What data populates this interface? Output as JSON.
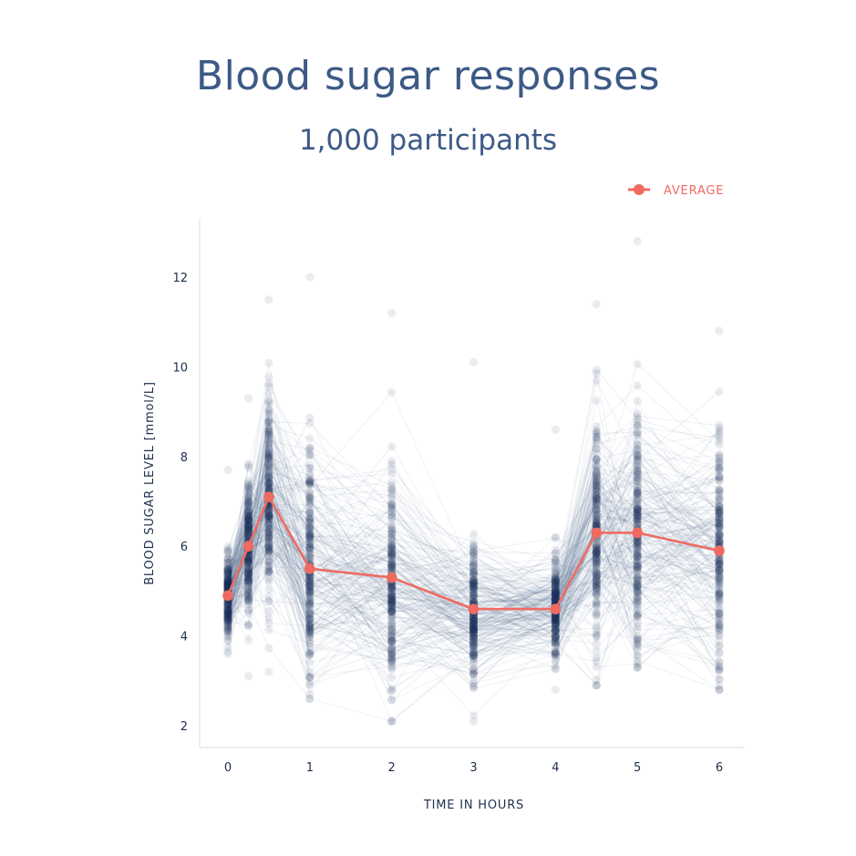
{
  "chart_data": {
    "type": "line",
    "title": "Blood sugar responses",
    "subtitle": "1,000 participants",
    "xlabel": "TIME IN HOURS",
    "ylabel": "BLOOD SUGAR LEVEL [mmol/L]",
    "x_ticks": [
      "0",
      "1",
      "2",
      "3",
      "4",
      "5",
      "6"
    ],
    "y_ticks": [
      "2",
      "4",
      "6",
      "8",
      "10",
      "12"
    ],
    "xlim": [
      -0.35,
      6.3
    ],
    "ylim": [
      1.5,
      13.2
    ],
    "grid": false,
    "legend_position": "top-right",
    "series": [
      {
        "name": "AVERAGE",
        "color": "#ef6b61",
        "x": [
          0,
          0.25,
          0.5,
          1,
          2,
          3,
          4,
          4.5,
          5,
          6
        ],
        "y": [
          4.9,
          6.0,
          7.1,
          5.5,
          5.3,
          4.6,
          4.6,
          6.3,
          6.3,
          5.9
        ]
      }
    ],
    "participant_traces": {
      "count": 1000,
      "color": "#3d5a86",
      "spread_sd": [
        0.55,
        0.85,
        1.3,
        1.55,
        1.5,
        0.9,
        0.65,
        1.55,
        1.65,
        1.5
      ],
      "min": [
        3.6,
        3.1,
        3.2,
        2.6,
        2.1,
        2.1,
        2.8,
        2.9,
        3.3,
        2.8
      ],
      "max": [
        7.7,
        9.3,
        11.5,
        12.0,
        11.2,
        10.1,
        8.6,
        11.4,
        12.8,
        10.8
      ]
    }
  }
}
